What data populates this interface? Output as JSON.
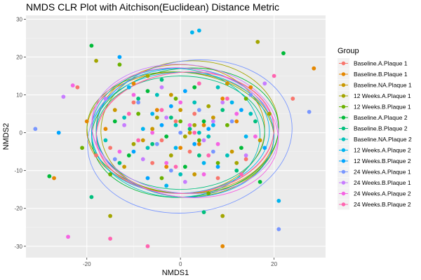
{
  "chart_data": {
    "type": "scatter",
    "title": "NMDS CLR Plot with Aitchison(Euclidean) Distance Metric",
    "xlabel": "NMDS1",
    "ylabel": "NMDS2",
    "xlim": [
      -33,
      31
    ],
    "ylim": [
      -33,
      31
    ],
    "x_ticks": [
      -20,
      0,
      20
    ],
    "y_ticks": [
      -30,
      -20,
      -10,
      0,
      10,
      20,
      30
    ],
    "grid": true,
    "legend_position": "right",
    "legend_title": "Group",
    "background": "#ebebeb",
    "series": [
      {
        "name": "Baseline.A.Plaque 1",
        "color": "#F8766D",
        "points": [
          [
            -22,
            12
          ],
          [
            -4,
            -2
          ],
          [
            3,
            5
          ],
          [
            24,
            9
          ],
          [
            -15,
            -4
          ],
          [
            8,
            -12
          ],
          [
            -1,
            3
          ],
          [
            14,
            -7
          ],
          [
            -10,
            8
          ],
          [
            6,
            -1
          ],
          [
            2,
            -5
          ],
          [
            -6,
            -8
          ],
          [
            -18,
            -6
          ]
        ],
        "ellipse": {
          "cx": 1,
          "cy": 0,
          "rx": 19,
          "ry": 16,
          "rot": -4
        }
      },
      {
        "name": "Baseline.B.Plaque 1",
        "color": "#E58700",
        "points": [
          [
            -27,
            -12
          ],
          [
            28.5,
            17
          ],
          [
            -10,
            13
          ],
          [
            5,
            2
          ],
          [
            -3,
            -9
          ],
          [
            12,
            3
          ],
          [
            0,
            -4
          ],
          [
            -16,
            1
          ],
          [
            9,
            9
          ],
          [
            -5,
            6
          ],
          [
            4,
            -3
          ],
          [
            9,
            -30
          ],
          [
            -20,
            3
          ],
          [
            15,
            12
          ]
        ],
        "ellipse": {
          "cx": 0,
          "cy": 0,
          "rx": 20,
          "ry": 16,
          "rot": 2
        }
      },
      {
        "name": "Baseline.NA.Plaque 1",
        "color": "#C99800",
        "points": [
          [
            2,
            0
          ],
          [
            -8,
            -2
          ],
          [
            7,
            4
          ],
          [
            -2,
            10
          ],
          [
            11,
            -5
          ],
          [
            -14,
            6
          ],
          [
            3,
            -11
          ],
          [
            -6,
            1
          ],
          [
            17,
            -2
          ],
          [
            0,
            6
          ],
          [
            -12,
            -9
          ],
          [
            10,
            13
          ]
        ],
        "ellipse": {
          "cx": 0,
          "cy": 1,
          "rx": 18,
          "ry": 17,
          "rot": 0
        }
      },
      {
        "name": "12 Weeks.A.Plaque 1",
        "color": "#A3A500",
        "points": [
          [
            16.5,
            24
          ],
          [
            -18,
            19
          ],
          [
            -15,
            -22
          ],
          [
            9,
            -22
          ],
          [
            3,
            2
          ],
          [
            -5,
            4
          ],
          [
            12,
            -8
          ],
          [
            -10,
            -3
          ],
          [
            6,
            7
          ],
          [
            -2,
            -6
          ],
          [
            19,
            5
          ],
          [
            -7,
            15
          ],
          [
            1,
            -1
          ]
        ],
        "ellipse": {
          "cx": 2,
          "cy": 1,
          "rx": 19,
          "ry": 18,
          "rot": -3
        }
      },
      {
        "name": "12 Weeks.B.Plaque 1",
        "color": "#6BB100",
        "points": [
          [
            -21,
            -4
          ],
          [
            -13,
            18
          ],
          [
            8,
            -8
          ],
          [
            0,
            3
          ],
          [
            4,
            -2
          ],
          [
            -9,
            5
          ],
          [
            14,
            9
          ],
          [
            -4,
            -12
          ],
          [
            10,
            2
          ],
          [
            -15,
            -11
          ],
          [
            6,
            -16
          ],
          [
            -1,
            9
          ]
        ],
        "ellipse": {
          "cx": 0,
          "cy": 0,
          "rx": 20,
          "ry": 16,
          "rot": 5
        }
      },
      {
        "name": "Baseline.A.Plaque 2",
        "color": "#00BA38",
        "points": [
          [
            -19,
            23
          ],
          [
            22,
            21
          ],
          [
            -28,
            -11.5
          ],
          [
            -3,
            -1
          ],
          [
            5,
            3
          ],
          [
            -11,
            -6
          ],
          [
            13,
            -4
          ],
          [
            1,
            -9
          ],
          [
            -7,
            11
          ],
          [
            17,
            -13
          ],
          [
            3,
            12
          ],
          [
            -14,
            3
          ]
        ],
        "ellipse": {
          "cx": 1,
          "cy": 0,
          "rx": 20,
          "ry": 17,
          "rot": -6
        }
      },
      {
        "name": "Baseline.B.Plaque 2",
        "color": "#00BF7D",
        "points": [
          [
            5,
            -21
          ],
          [
            -19,
            -17
          ],
          [
            2,
            1
          ],
          [
            -6,
            -3
          ],
          [
            9,
            6
          ],
          [
            -2,
            4
          ],
          [
            12,
            -10
          ],
          [
            -9,
            9
          ],
          [
            16,
            3
          ],
          [
            -13,
            -8
          ],
          [
            4,
            -6
          ],
          [
            -4,
            14
          ]
        ],
        "ellipse": {
          "cx": 0,
          "cy": 0,
          "rx": 18,
          "ry": 15,
          "rot": 0
        }
      },
      {
        "name": "Baseline.NA.Plaque 2",
        "color": "#00C0B8",
        "points": [
          [
            -1,
            2
          ],
          [
            6,
            -1
          ],
          [
            -7,
            -4
          ],
          [
            3,
            8
          ],
          [
            -12,
            4
          ],
          [
            10,
            -6
          ],
          [
            0,
            -11
          ],
          [
            15,
            5
          ],
          [
            -5,
            10
          ],
          [
            8,
            12
          ],
          [
            -16,
            -2
          ],
          [
            4,
            0
          ]
        ],
        "ellipse": {
          "cx": -1,
          "cy": 0,
          "rx": 18,
          "ry": 17,
          "rot": 3
        }
      },
      {
        "name": "12 Weeks.A.Plaque 2",
        "color": "#00B4EF",
        "points": [
          [
            2.5,
            26.5
          ],
          [
            4,
            27
          ],
          [
            21,
            -18
          ],
          [
            -1,
            -4
          ],
          [
            7,
            2
          ],
          [
            -8,
            1
          ],
          [
            11,
            8
          ],
          [
            -3,
            -14
          ],
          [
            14,
            -1
          ],
          [
            -11,
            12
          ],
          [
            5,
            -8
          ],
          [
            -6,
            5
          ]
        ],
        "ellipse": {
          "cx": 0,
          "cy": 0,
          "rx": 19,
          "ry": 16,
          "rot": -2
        }
      },
      {
        "name": "12 Weeks.B.Plaque 2",
        "color": "#00A5FF",
        "points": [
          [
            -26,
            0
          ],
          [
            -13,
            20
          ],
          [
            3,
            -3
          ],
          [
            -4,
            2
          ],
          [
            8,
            -9
          ],
          [
            -10,
            -5
          ],
          [
            13,
            6
          ],
          [
            1,
            11
          ],
          [
            -7,
            -12
          ],
          [
            18,
            -4
          ],
          [
            -2,
            7
          ],
          [
            6,
            1
          ]
        ],
        "ellipse": {
          "cx": 1,
          "cy": 0,
          "rx": 19,
          "ry": 17,
          "rot": 4
        }
      },
      {
        "name": "24 Weeks.A.Plaque 1",
        "color": "#7997FF",
        "points": [
          [
            -31,
            1
          ],
          [
            21,
            -25.5
          ],
          [
            27.5,
            5.5
          ],
          [
            0,
            0
          ],
          [
            -5,
            -3
          ],
          [
            7,
            -5
          ],
          [
            -9,
            8
          ],
          [
            11,
            3
          ],
          [
            -2,
            -10
          ],
          [
            15,
            10
          ],
          [
            4,
            6
          ],
          [
            -14,
            -7
          ]
        ],
        "ellipse": {
          "cx": 2,
          "cy": -1,
          "rx": 22,
          "ry": 20,
          "rot": -10
        }
      },
      {
        "name": "24 Weeks.B.Plaque 1",
        "color": "#C77CFF",
        "points": [
          [
            -25,
            9.5
          ],
          [
            18,
            13
          ],
          [
            -3,
            4
          ],
          [
            5,
            -2
          ],
          [
            -8,
            -7
          ],
          [
            9,
            8
          ],
          [
            1,
            -13
          ],
          [
            -12,
            2
          ],
          [
            14,
            -6
          ],
          [
            -4,
            12
          ],
          [
            7,
            3
          ],
          [
            -16,
            9
          ]
        ],
        "ellipse": {
          "cx": 1,
          "cy": 1,
          "rx": 20,
          "ry": 17,
          "rot": 6
        }
      },
      {
        "name": "24 Weeks.A.Plaque 2",
        "color": "#F564E3",
        "points": [
          [
            -23,
            12.5
          ],
          [
            -24,
            -27.5
          ],
          [
            2,
            2
          ],
          [
            -6,
            0
          ],
          [
            8,
            -3
          ],
          [
            -3,
            -8
          ],
          [
            12,
            5
          ],
          [
            -10,
            10
          ],
          [
            5,
            -11
          ],
          [
            16,
            -1
          ],
          [
            -13,
            -5
          ],
          [
            0,
            8
          ]
        ],
        "ellipse": {
          "cx": 1,
          "cy": 0,
          "rx": 20,
          "ry": 17,
          "rot": 8
        }
      },
      {
        "name": "24 Weeks.B.Plaque 2",
        "color": "#FF64B0",
        "points": [
          [
            -7,
            -30
          ],
          [
            -15,
            -28
          ],
          [
            20,
            15
          ],
          [
            3,
            0
          ],
          [
            -4,
            6
          ],
          [
            6,
            -6
          ],
          [
            -9,
            -2
          ],
          [
            10,
            9
          ],
          [
            -1,
            -9
          ],
          [
            13,
            -11
          ],
          [
            -11,
            5
          ],
          [
            4,
            13
          ]
        ],
        "ellipse": {
          "cx": 1,
          "cy": 0,
          "rx": 19,
          "ry": 16,
          "rot": -5
        }
      }
    ]
  }
}
